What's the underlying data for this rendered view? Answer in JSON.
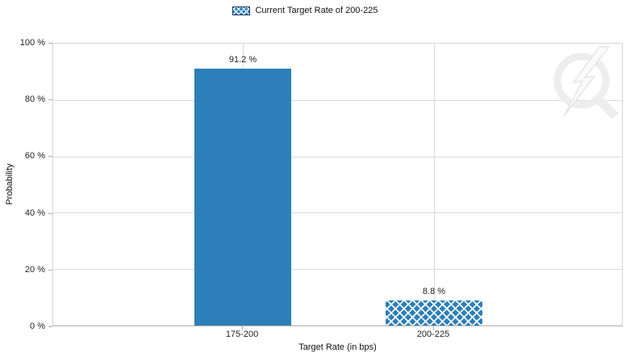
{
  "legend": {
    "label": "Current Target Rate of 200-225",
    "swatch": "crosshatch-blue"
  },
  "chart_data": {
    "type": "bar",
    "title": "",
    "categories": [
      "175-200",
      "200-225"
    ],
    "values": [
      91.2,
      8.8
    ],
    "value_labels": [
      "91.2 %",
      "8.8 %"
    ],
    "bar_styles": [
      "solid",
      "crosshatch"
    ],
    "series": [
      {
        "name": "Current Target Rate of 200-225",
        "values": [
          91.2,
          8.8
        ]
      }
    ],
    "xlabel": "Target Rate (in bps)",
    "ylabel": "Probability",
    "ylim": [
      0,
      100
    ],
    "yticks": [
      0,
      20,
      40,
      60,
      80,
      100
    ],
    "ytick_labels_top_down": [
      "100 %",
      "80 %",
      "60 %",
      "40 %",
      "20 %",
      "0 %"
    ],
    "grid": true,
    "legend_position": "top",
    "colors": {
      "bar": "#2c7fb8",
      "gridline": "#dadada",
      "axis": "#ababab",
      "text": "#222222",
      "legend_swatch_border": "#1e3a5f",
      "watermark": "#ededed"
    }
  },
  "watermark": {
    "name": "quikstrike-lightning-q-logo"
  }
}
